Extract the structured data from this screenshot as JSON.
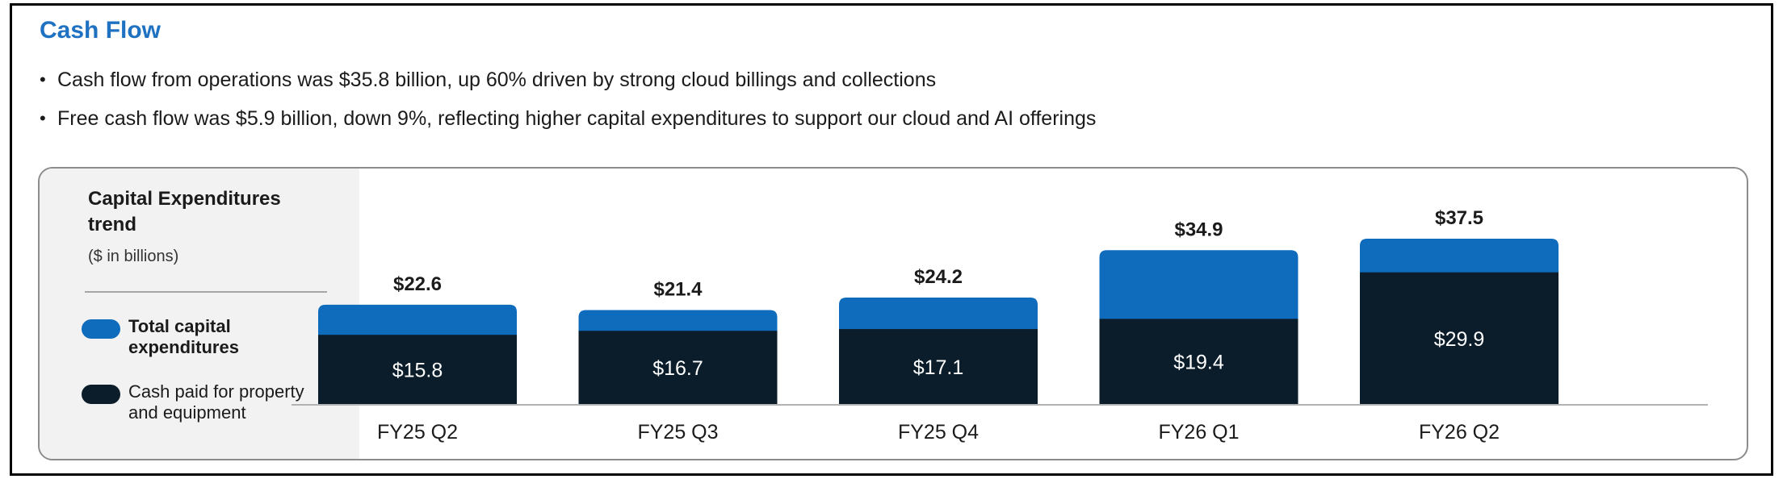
{
  "header": {
    "title": "Cash Flow",
    "bullets": [
      "Cash flow from operations was $35.8 billion, up 60% driven by strong cloud billings and collections",
      "Free cash flow was $5.9 billion, down 9%, reflecting higher capital expenditures to support our cloud and AI offerings"
    ]
  },
  "legend": {
    "title": "Capital Expenditures trend",
    "unit": "($ in billions)",
    "items": [
      {
        "label": "Total capital expenditures",
        "color": "#0f6cbd"
      },
      {
        "label": "Cash paid for property and equipment",
        "color": "#0b1d2a"
      }
    ]
  },
  "chart_data": {
    "type": "bar",
    "categories": [
      "FY25 Q2",
      "FY25 Q3",
      "FY25 Q4",
      "FY26 Q1",
      "FY26 Q2"
    ],
    "series": [
      {
        "name": "Total capital expenditures",
        "values": [
          22.6,
          21.4,
          24.2,
          34.9,
          37.5
        ],
        "labels": [
          "$22.6",
          "$21.4",
          "$24.2",
          "$34.9",
          "$37.5"
        ],
        "color": "#0f6cbd"
      },
      {
        "name": "Cash paid for property and equipment",
        "values": [
          15.8,
          16.7,
          17.1,
          19.4,
          29.9
        ],
        "labels": [
          "$15.8",
          "$16.7",
          "$17.1",
          "$19.4",
          "$29.9"
        ],
        "color": "#0b1d2a"
      }
    ],
    "ylim": [
      0,
      37.5
    ],
    "grid": false,
    "legend_position": "left"
  }
}
